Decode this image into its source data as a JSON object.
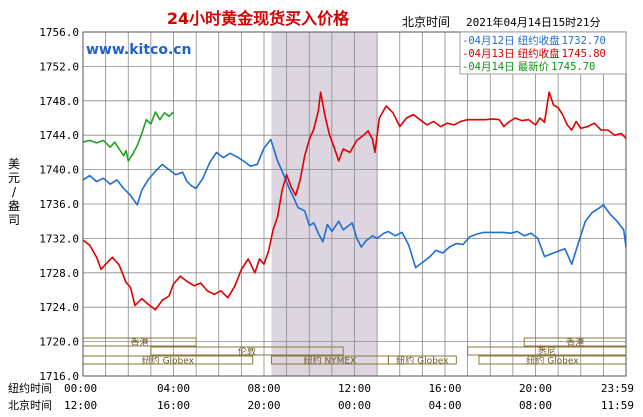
{
  "colors": {
    "background": "#ffffff",
    "plot_bg": "#ffffff",
    "grid": "#8a8a8a",
    "highlight_band": "#ddd6e0",
    "title": "#d40000",
    "watermark": "#1f63c8",
    "series_blue": "#1f6fd0",
    "series_red": "#e00000",
    "series_green": "#22a022",
    "legend_blue": "#1f6fd0",
    "legend_red": "#d40000",
    "legend_green": "#109010",
    "market_bar": "#8c7a3a",
    "text": "#000000"
  },
  "chart_data": {
    "type": "line",
    "title": "24小时黄金现货买入价格",
    "timezone_label": "北京时间",
    "timestamp": "2021年04月14日15时21分",
    "watermark": "www.kitco.cn",
    "ylabel": "美元/盎司",
    "ylim": [
      1716,
      1756
    ],
    "y_ticks": [
      "1756.0",
      "1752.0",
      "1748.0",
      "1744.0",
      "1740.0",
      "1736.0",
      "1732.0",
      "1728.0",
      "1724.0",
      "1720.0",
      "1716.0"
    ],
    "y_tick_values": [
      1756,
      1752,
      1748,
      1744,
      1740,
      1736,
      1732,
      1728,
      1724,
      1720,
      1716
    ],
    "x_ny_label": "纽约时间",
    "x_bj_label": "北京时间",
    "x_ny_ticks": [
      "00:00",
      "04:00",
      "08:00",
      "12:00",
      "16:00",
      "20:00",
      "23:59"
    ],
    "x_bj_ticks": [
      "12:00",
      "16:00",
      "20:00",
      "00:00",
      "04:00",
      "08:00",
      "11:59"
    ],
    "x_tick_hours": [
      0,
      4,
      8,
      12,
      16,
      20,
      24
    ],
    "xlim": [
      0,
      24
    ],
    "highlight_band_hours": [
      8.33,
      13.0
    ],
    "legend": [
      {
        "date": "04月12日",
        "kind": "纽约收盘",
        "value": "1732.70",
        "color_key": "legend_blue"
      },
      {
        "date": "04月13日",
        "kind": "纽约收盘",
        "value": "1745.80",
        "color_key": "legend_red"
      },
      {
        "date": "04月14日",
        "kind": "最新价",
        "value": "1745.70",
        "color_key": "legend_green"
      }
    ],
    "markets": [
      {
        "label": "香港",
        "row": 0,
        "start": 0,
        "end": 5.0
      },
      {
        "label": "香港",
        "row": 0,
        "start": 19.5,
        "end": 24
      },
      {
        "label": "伦敦",
        "row": 1,
        "start": 3.0,
        "end": 11.5
      },
      {
        "label": "悉尼",
        "row": 1,
        "start": 17.0,
        "end": 24
      },
      {
        "label": "纽约 Globex",
        "row": 2,
        "start": 0,
        "end": 7.5
      },
      {
        "label": "纽约 NYMEX",
        "row": 2,
        "start": 8.33,
        "end": 13.5
      },
      {
        "label": "纽约 Globex",
        "row": 2,
        "start": 13.5,
        "end": 16.5
      },
      {
        "label": "纽约 Globex",
        "row": 2,
        "start": 17.5,
        "end": 24
      }
    ],
    "series": [
      {
        "color_key": "series_blue",
        "points": [
          [
            0.0,
            1738.8
          ],
          [
            0.3,
            1739.3
          ],
          [
            0.6,
            1738.6
          ],
          [
            0.9,
            1739.0
          ],
          [
            1.2,
            1738.3
          ],
          [
            1.5,
            1738.8
          ],
          [
            1.8,
            1737.8
          ],
          [
            2.1,
            1737.0
          ],
          [
            2.4,
            1735.9
          ],
          [
            2.6,
            1737.6
          ],
          [
            2.9,
            1738.9
          ],
          [
            3.2,
            1739.8
          ],
          [
            3.5,
            1740.6
          ],
          [
            3.8,
            1740.0
          ],
          [
            4.1,
            1739.4
          ],
          [
            4.4,
            1739.7
          ],
          [
            4.6,
            1738.6
          ],
          [
            4.8,
            1738.1
          ],
          [
            5.0,
            1737.8
          ],
          [
            5.3,
            1739.0
          ],
          [
            5.6,
            1740.8
          ],
          [
            5.9,
            1742.0
          ],
          [
            6.2,
            1741.4
          ],
          [
            6.5,
            1741.9
          ],
          [
            6.8,
            1741.5
          ],
          [
            7.1,
            1741.0
          ],
          [
            7.4,
            1740.4
          ],
          [
            7.7,
            1740.6
          ],
          [
            8.0,
            1742.5
          ],
          [
            8.3,
            1743.5
          ],
          [
            8.6,
            1741.0
          ],
          [
            8.9,
            1739.2
          ],
          [
            9.1,
            1737.9
          ],
          [
            9.3,
            1736.8
          ],
          [
            9.5,
            1735.6
          ],
          [
            9.8,
            1735.2
          ],
          [
            10.0,
            1733.5
          ],
          [
            10.2,
            1733.8
          ],
          [
            10.4,
            1732.6
          ],
          [
            10.6,
            1731.6
          ],
          [
            10.8,
            1733.6
          ],
          [
            11.0,
            1732.8
          ],
          [
            11.3,
            1734.0
          ],
          [
            11.5,
            1733.0
          ],
          [
            11.7,
            1733.4
          ],
          [
            11.9,
            1733.8
          ],
          [
            12.1,
            1732.0
          ],
          [
            12.3,
            1731.0
          ],
          [
            12.5,
            1731.7
          ],
          [
            12.8,
            1732.3
          ],
          [
            13.0,
            1732.0
          ],
          [
            13.3,
            1732.6
          ],
          [
            13.5,
            1732.8
          ],
          [
            13.8,
            1732.3
          ],
          [
            14.1,
            1732.7
          ],
          [
            14.4,
            1731.2
          ],
          [
            14.7,
            1728.6
          ],
          [
            15.0,
            1729.2
          ],
          [
            15.3,
            1729.8
          ],
          [
            15.6,
            1730.6
          ],
          [
            15.9,
            1730.3
          ],
          [
            16.2,
            1731.0
          ],
          [
            16.5,
            1731.4
          ],
          [
            16.8,
            1731.3
          ],
          [
            17.1,
            1732.2
          ],
          [
            17.4,
            1732.5
          ],
          [
            17.7,
            1732.7
          ],
          [
            18.0,
            1732.7
          ],
          [
            18.3,
            1732.7
          ],
          [
            18.6,
            1732.7
          ],
          [
            18.9,
            1732.6
          ],
          [
            19.2,
            1732.8
          ],
          [
            19.5,
            1732.3
          ],
          [
            19.8,
            1732.6
          ],
          [
            20.1,
            1732.0
          ],
          [
            20.4,
            1729.9
          ],
          [
            20.7,
            1730.2
          ],
          [
            21.0,
            1730.5
          ],
          [
            21.3,
            1730.8
          ],
          [
            21.6,
            1729.0
          ],
          [
            21.9,
            1731.5
          ],
          [
            22.2,
            1734.0
          ],
          [
            22.5,
            1735.0
          ],
          [
            22.8,
            1735.5
          ],
          [
            23.0,
            1735.9
          ],
          [
            23.3,
            1734.8
          ],
          [
            23.6,
            1734.0
          ],
          [
            23.9,
            1733.0
          ],
          [
            24.0,
            1731.0
          ]
        ]
      },
      {
        "color_key": "series_red",
        "points": [
          [
            0.0,
            1731.8
          ],
          [
            0.3,
            1731.2
          ],
          [
            0.6,
            1729.8
          ],
          [
            0.8,
            1728.4
          ],
          [
            1.0,
            1729.0
          ],
          [
            1.3,
            1729.8
          ],
          [
            1.6,
            1728.9
          ],
          [
            1.9,
            1726.9
          ],
          [
            2.1,
            1726.3
          ],
          [
            2.3,
            1724.2
          ],
          [
            2.6,
            1725.0
          ],
          [
            2.9,
            1724.3
          ],
          [
            3.2,
            1723.7
          ],
          [
            3.5,
            1724.8
          ],
          [
            3.8,
            1725.3
          ],
          [
            4.0,
            1726.7
          ],
          [
            4.3,
            1727.6
          ],
          [
            4.6,
            1727.0
          ],
          [
            4.9,
            1726.5
          ],
          [
            5.2,
            1726.8
          ],
          [
            5.5,
            1725.9
          ],
          [
            5.8,
            1725.5
          ],
          [
            6.1,
            1725.9
          ],
          [
            6.4,
            1725.1
          ],
          [
            6.7,
            1726.4
          ],
          [
            7.0,
            1728.4
          ],
          [
            7.3,
            1729.6
          ],
          [
            7.6,
            1728.0
          ],
          [
            7.8,
            1729.6
          ],
          [
            8.0,
            1729.0
          ],
          [
            8.2,
            1730.5
          ],
          [
            8.4,
            1733.0
          ],
          [
            8.6,
            1734.5
          ],
          [
            8.8,
            1737.6
          ],
          [
            9.0,
            1739.4
          ],
          [
            9.2,
            1738.0
          ],
          [
            9.4,
            1737.0
          ],
          [
            9.6,
            1738.8
          ],
          [
            9.8,
            1741.6
          ],
          [
            10.0,
            1743.5
          ],
          [
            10.2,
            1744.7
          ],
          [
            10.4,
            1746.8
          ],
          [
            10.5,
            1749.0
          ],
          [
            10.7,
            1746.2
          ],
          [
            10.9,
            1744.0
          ],
          [
            11.1,
            1742.6
          ],
          [
            11.3,
            1741.0
          ],
          [
            11.5,
            1742.4
          ],
          [
            11.8,
            1742.0
          ],
          [
            12.1,
            1743.4
          ],
          [
            12.4,
            1744.0
          ],
          [
            12.6,
            1744.5
          ],
          [
            12.8,
            1743.5
          ],
          [
            12.9,
            1742.0
          ],
          [
            13.1,
            1746.0
          ],
          [
            13.4,
            1747.4
          ],
          [
            13.7,
            1746.6
          ],
          [
            14.0,
            1745.0
          ],
          [
            14.3,
            1746.0
          ],
          [
            14.6,
            1746.4
          ],
          [
            14.9,
            1745.8
          ],
          [
            15.2,
            1745.2
          ],
          [
            15.5,
            1745.6
          ],
          [
            15.8,
            1745.0
          ],
          [
            16.1,
            1745.4
          ],
          [
            16.4,
            1745.2
          ],
          [
            16.7,
            1745.6
          ],
          [
            17.0,
            1745.8
          ],
          [
            17.4,
            1745.8
          ],
          [
            17.8,
            1745.8
          ],
          [
            18.1,
            1745.9
          ],
          [
            18.4,
            1745.8
          ],
          [
            18.6,
            1745.0
          ],
          [
            18.8,
            1745.5
          ],
          [
            19.1,
            1746.0
          ],
          [
            19.4,
            1745.7
          ],
          [
            19.7,
            1745.8
          ],
          [
            20.0,
            1745.2
          ],
          [
            20.2,
            1746.0
          ],
          [
            20.4,
            1745.5
          ],
          [
            20.6,
            1749.0
          ],
          [
            20.8,
            1747.5
          ],
          [
            21.0,
            1747.2
          ],
          [
            21.2,
            1746.4
          ],
          [
            21.4,
            1745.2
          ],
          [
            21.6,
            1744.6
          ],
          [
            21.8,
            1745.6
          ],
          [
            22.0,
            1744.8
          ],
          [
            22.3,
            1745.0
          ],
          [
            22.6,
            1745.4
          ],
          [
            22.9,
            1744.6
          ],
          [
            23.2,
            1744.6
          ],
          [
            23.5,
            1744.0
          ],
          [
            23.8,
            1744.2
          ],
          [
            24.0,
            1743.6
          ]
        ]
      },
      {
        "color_key": "series_green",
        "points": [
          [
            0.0,
            1743.2
          ],
          [
            0.3,
            1743.4
          ],
          [
            0.6,
            1743.1
          ],
          [
            0.9,
            1743.4
          ],
          [
            1.2,
            1742.6
          ],
          [
            1.4,
            1743.2
          ],
          [
            1.6,
            1742.4
          ],
          [
            1.8,
            1741.6
          ],
          [
            1.9,
            1742.2
          ],
          [
            2.0,
            1741.0
          ],
          [
            2.2,
            1741.8
          ],
          [
            2.4,
            1742.8
          ],
          [
            2.6,
            1744.2
          ],
          [
            2.8,
            1745.8
          ],
          [
            3.0,
            1745.3
          ],
          [
            3.2,
            1746.7
          ],
          [
            3.4,
            1745.8
          ],
          [
            3.6,
            1746.6
          ],
          [
            3.8,
            1746.2
          ],
          [
            4.0,
            1746.7
          ]
        ]
      }
    ]
  }
}
